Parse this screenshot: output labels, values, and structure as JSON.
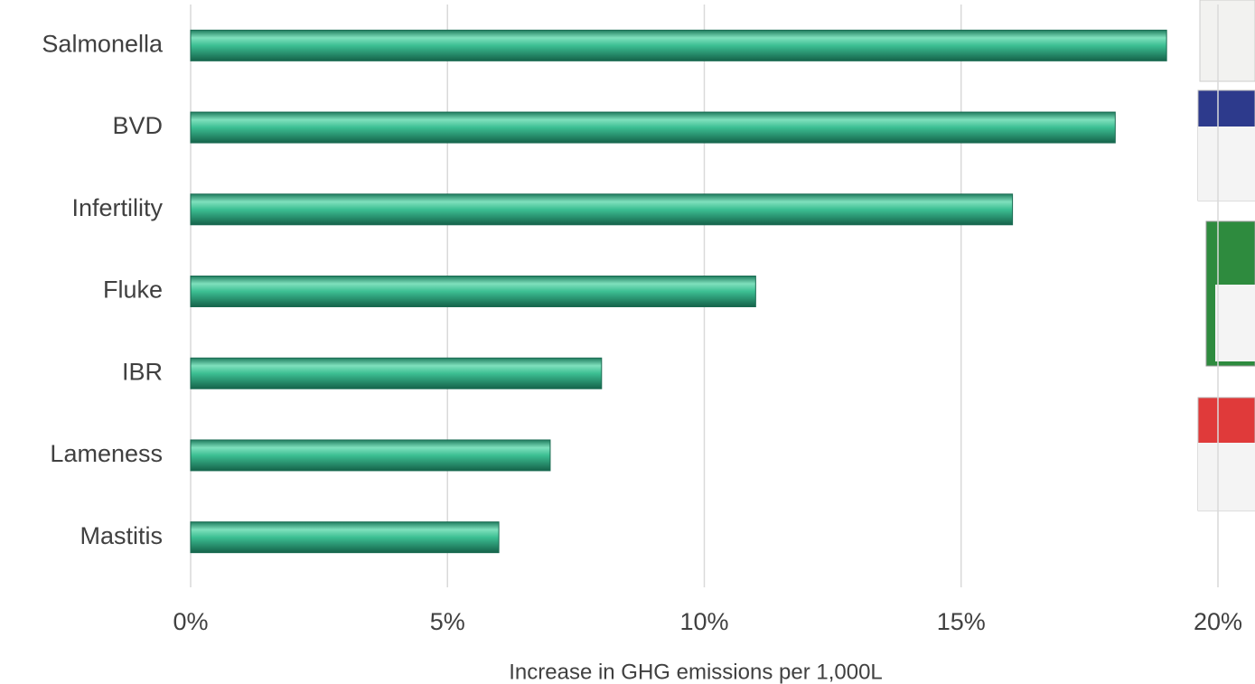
{
  "chart_data": {
    "type": "barh",
    "x_axis_label": "Increase in GHG emissions per 1,000L",
    "categories": [
      "Salmonella",
      "BVD",
      "Infertility",
      "Fluke",
      "IBR",
      "Lameness",
      "Mastitis"
    ],
    "values": [
      19,
      18,
      16,
      11,
      8,
      7,
      6
    ],
    "color": "#2fa37e",
    "xlim": [
      0,
      20
    ],
    "xticks": [
      {
        "value": 0,
        "label": "0%"
      },
      {
        "value": 5,
        "label": "5%"
      },
      {
        "value": 10,
        "label": "10%"
      },
      {
        "value": 15,
        "label": "15%"
      },
      {
        "value": 20,
        "label": "20%"
      }
    ],
    "grid": true
  }
}
